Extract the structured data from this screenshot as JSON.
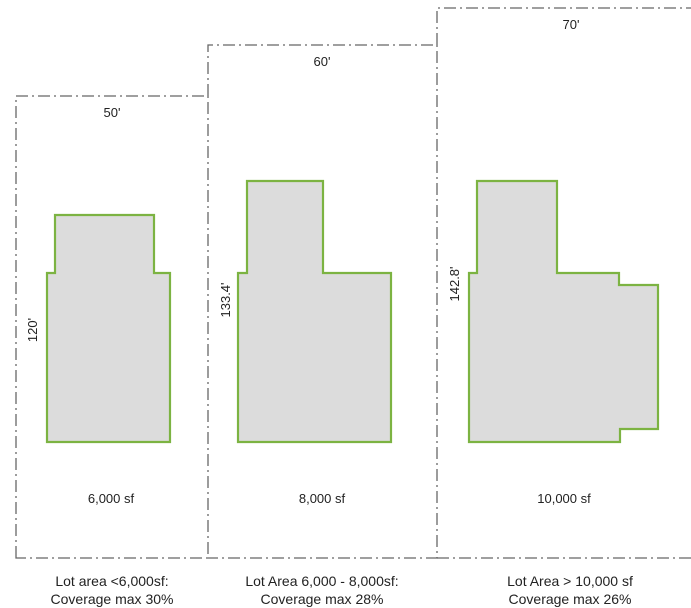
{
  "lots": [
    {
      "width_label": "50'",
      "depth_label": "120'",
      "area_label": "6,000 sf",
      "caption_line1": "Lot area <6,000sf:",
      "caption_line2": "Coverage max 30%"
    },
    {
      "width_label": "60'",
      "depth_label": "133.4'",
      "area_label": "8,000 sf",
      "caption_line1": "Lot Area 6,000 - 8,000sf:",
      "caption_line2": "Coverage max 28%"
    },
    {
      "width_label": "70'",
      "depth_label": "142.8'",
      "area_label": "10,000 sf",
      "caption_line1": "Lot Area > 10,000 sf",
      "caption_line2": "Coverage max 26%"
    }
  ],
  "colors": {
    "building_outline": "#7cb342",
    "building_fill": "#dcdcdc",
    "lot_line": "#666666"
  }
}
